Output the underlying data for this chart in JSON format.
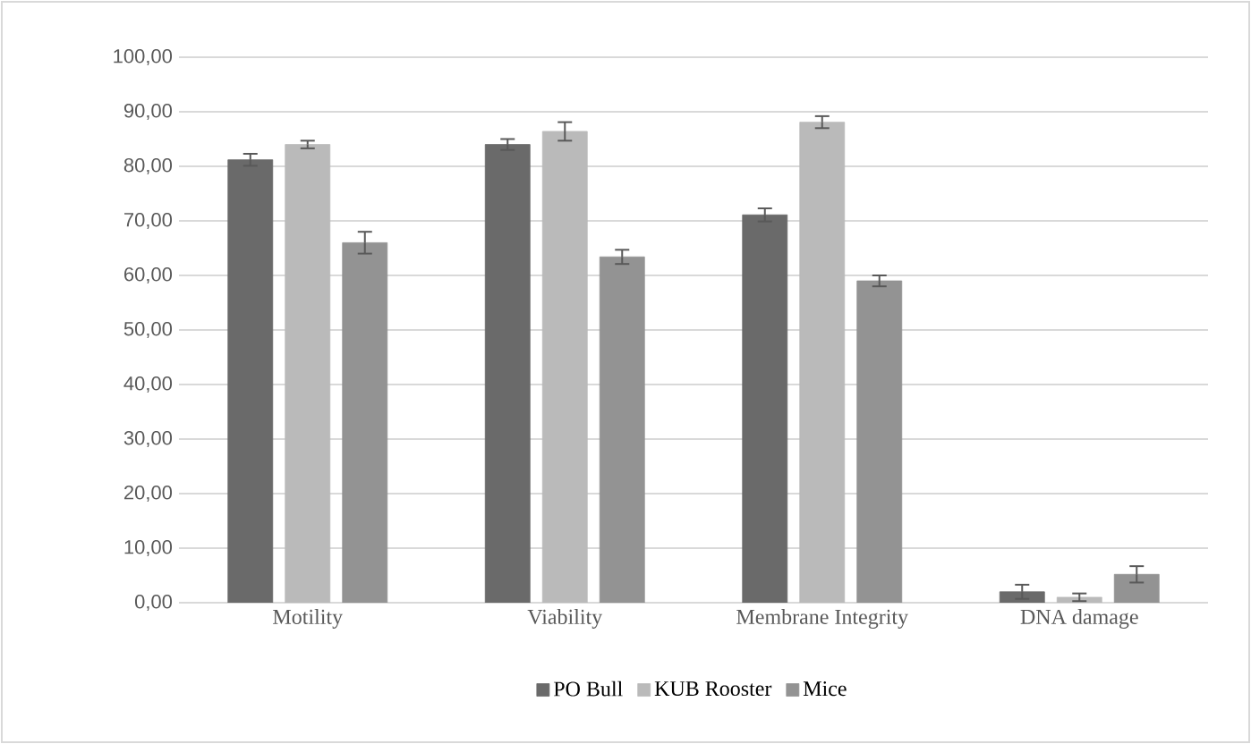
{
  "chart_data": {
    "type": "bar",
    "categories": [
      "Motility",
      "Viability",
      "Membrane Integrity",
      "DNA damage"
    ],
    "series": [
      {
        "name": "PO Bull",
        "color": "#6a6a6a",
        "values": [
          81.2,
          84.0,
          71.1,
          2.0
        ],
        "errors": [
          1.1,
          1.0,
          1.2,
          1.3
        ]
      },
      {
        "name": "KUB Rooster",
        "color": "#bababa",
        "values": [
          84.0,
          86.4,
          88.1,
          1.0
        ],
        "errors": [
          0.7,
          1.7,
          1.1,
          0.7
        ]
      },
      {
        "name": "Mice",
        "color": "#939393",
        "values": [
          66.0,
          63.4,
          59.0,
          5.2
        ],
        "errors": [
          2.0,
          1.3,
          1.0,
          1.5
        ]
      }
    ],
    "ylim": [
      0,
      100
    ],
    "yticks": [
      {
        "value": 0,
        "label": "0,00"
      },
      {
        "value": 10,
        "label": "10,00"
      },
      {
        "value": 20,
        "label": "20,00"
      },
      {
        "value": 30,
        "label": "30,00"
      },
      {
        "value": 40,
        "label": "40,00"
      },
      {
        "value": 50,
        "label": "50,00"
      },
      {
        "value": 60,
        "label": "60,00"
      },
      {
        "value": 70,
        "label": "70,00"
      },
      {
        "value": 80,
        "label": "80,00"
      },
      {
        "value": 90,
        "label": "90,00"
      },
      {
        "value": 100,
        "label": "100,00"
      }
    ],
    "grid": "y",
    "legend": "bottom"
  }
}
